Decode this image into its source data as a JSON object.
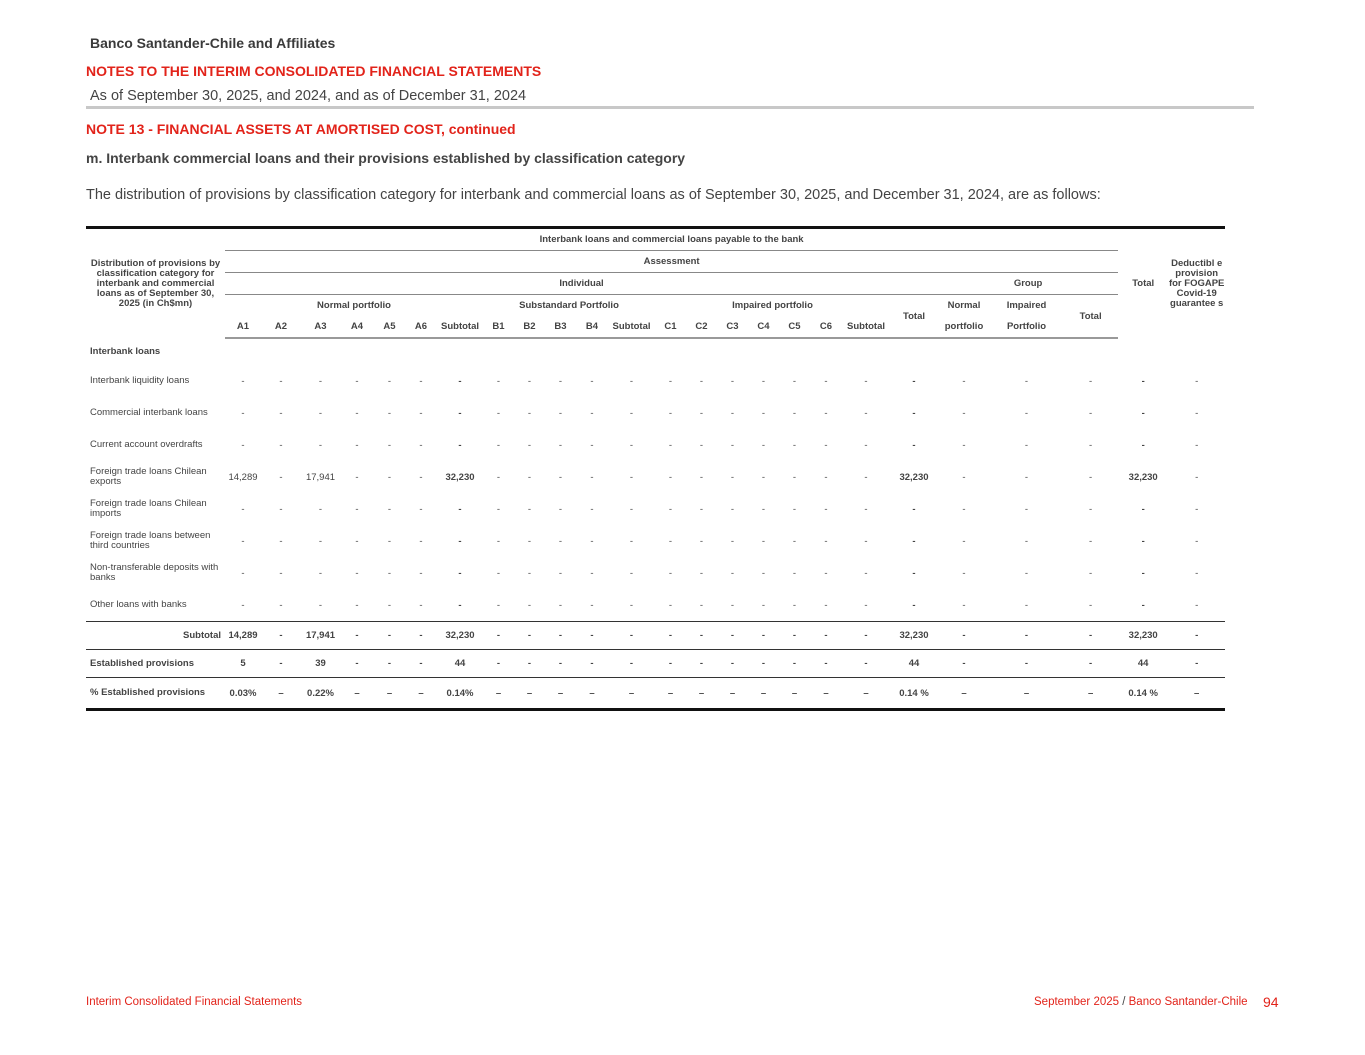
{
  "header": {
    "company": "Banco Santander-Chile and Affiliates",
    "notes_title": "NOTES TO THE INTERIM CONSOLIDATED FINANCIAL STATEMENTS",
    "as_of": "As of September 30, 2025, and 2024, and as of December 31, 2024"
  },
  "note": {
    "title": "NOTE 13 - FINANCIAL ASSETS AT AMORTISED COST, continued",
    "subtitle": "m.  Interbank commercial loans and their provisions established by classification category",
    "intro": "The distribution of provisions by classification category for interbank and commercial loans as of September 30, 2025, and December 31, 2024, are as follows:"
  },
  "table": {
    "corner": "Distribution of provisions by classification category for interbank and commercial loans as of September 30, 2025 (in Ch$mn)",
    "top_header": "Interbank loans and commercial loans payable to the bank",
    "assessment": "Assessment",
    "individual": "Individual",
    "group": "Group",
    "total": "Total",
    "deductible": "Deductibl e provision for FOGAPE Covid-19 guarantee s",
    "normal_portfolio": "Normal portfolio",
    "substandard_portfolio": "Substandard Portfolio",
    "impaired_portfolio": "Impaired portfolio",
    "individual_total": "Total",
    "group_normal_1": "Normal",
    "group_normal_2": "portfolio",
    "group_impaired_1": "Impaired",
    "group_impaired_2": "Portfolio",
    "group_total": "Total",
    "columns": [
      "A1",
      "A2",
      "A3",
      "A4",
      "A5",
      "A6",
      "Subtotal",
      "B1",
      "B2",
      "B3",
      "B4",
      "Subtotal",
      "C1",
      "C2",
      "C3",
      "C4",
      "C5",
      "C6",
      "Subtotal"
    ],
    "section": "Interbank loans",
    "rows": [
      {
        "label": "Interbank liquidity loans",
        "values": [
          "-",
          "-",
          "-",
          "-",
          "-",
          "-",
          "-",
          "-",
          "-",
          "-",
          "-",
          "-",
          "-",
          "-",
          "-",
          "-",
          "-",
          "-",
          "-",
          "-",
          "-",
          "-",
          "-",
          "-",
          "-"
        ]
      },
      {
        "label": "Commercial interbank loans",
        "values": [
          "-",
          "-",
          "-",
          "-",
          "-",
          "-",
          "-",
          "-",
          "-",
          "-",
          "-",
          "-",
          "-",
          "-",
          "-",
          "-",
          "-",
          "-",
          "-",
          "-",
          "-",
          "-",
          "-",
          "-",
          "-"
        ]
      },
      {
        "label": "Current account overdrafts",
        "values": [
          "-",
          "-",
          "-",
          "-",
          "-",
          "-",
          "-",
          "-",
          "-",
          "-",
          "-",
          "-",
          "-",
          "-",
          "-",
          "-",
          "-",
          "-",
          "-",
          "-",
          "-",
          "-",
          "-",
          "-",
          "-"
        ]
      },
      {
        "label": "Foreign trade loans Chilean exports",
        "values": [
          "14,289",
          "-",
          "17,941",
          "-",
          "-",
          "-",
          "32,230",
          "-",
          "-",
          "-",
          "-",
          "-",
          "-",
          "-",
          "-",
          "-",
          "-",
          "-",
          "-",
          "32,230",
          "-",
          "-",
          "-",
          "32,230",
          "-"
        ]
      },
      {
        "label": "Foreign trade loans Chilean imports",
        "values": [
          "-",
          "-",
          "-",
          "-",
          "-",
          "-",
          "-",
          "-",
          "-",
          "-",
          "-",
          "-",
          "-",
          "-",
          "-",
          "-",
          "-",
          "-",
          "-",
          "-",
          "-",
          "-",
          "-",
          "-",
          "-"
        ]
      },
      {
        "label": "Foreign trade loans between third countries",
        "values": [
          "-",
          "-",
          "-",
          "-",
          "-",
          "-",
          "-",
          "-",
          "-",
          "-",
          "-",
          "-",
          "-",
          "-",
          "-",
          "-",
          "-",
          "-",
          "-",
          "-",
          "-",
          "-",
          "-",
          "-",
          "-"
        ]
      },
      {
        "label": "Non-transferable deposits with banks",
        "values": [
          "-",
          "-",
          "-",
          "-",
          "-",
          "-",
          "-",
          "-",
          "-",
          "-",
          "-",
          "-",
          "-",
          "-",
          "-",
          "-",
          "-",
          "-",
          "-",
          "-",
          "-",
          "-",
          "-",
          "-",
          "-"
        ]
      },
      {
        "label": "Other loans with banks",
        "values": [
          "-",
          "-",
          "-",
          "-",
          "-",
          "-",
          "-",
          "-",
          "-",
          "-",
          "-",
          "-",
          "-",
          "-",
          "-",
          "-",
          "-",
          "-",
          "-",
          "-",
          "-",
          "-",
          "-",
          "-",
          "-"
        ]
      }
    ],
    "summary": [
      {
        "label": "Subtotal",
        "values": [
          "14,289",
          "-",
          "17,941",
          "-",
          "-",
          "-",
          "32,230",
          "-",
          "-",
          "-",
          "-",
          "-",
          "-",
          "-",
          "-",
          "-",
          "-",
          "-",
          "-",
          "32,230",
          "-",
          "-",
          "-",
          "32,230",
          "-"
        ]
      },
      {
        "label": "Established provisions",
        "values": [
          "5",
          "-",
          "39",
          "-",
          "-",
          "-",
          "44",
          "-",
          "-",
          "-",
          "-",
          "-",
          "-",
          "-",
          "-",
          "-",
          "-",
          "-",
          "-",
          "44",
          "-",
          "-",
          "-",
          "44",
          "-"
        ]
      },
      {
        "label": "% Established provisions",
        "values": [
          "0.03%",
          "–",
          "0.22%",
          "–",
          "–",
          "–",
          "0.14%",
          "–",
          "–",
          "–",
          "–",
          "–",
          "–",
          "–",
          "–",
          "–",
          "–",
          "–",
          "–",
          "0.14 %",
          "–",
          "–",
          "–",
          "0.14 %",
          "–"
        ]
      }
    ]
  },
  "footer": {
    "left": "Interim Consolidated Financial Statements",
    "right_period": "September 2025",
    "right_sep": " / ",
    "right_company": "Banco Santander-Chile",
    "page": "94"
  },
  "colors": {
    "accent": "#e2231a",
    "text": "#444444"
  }
}
